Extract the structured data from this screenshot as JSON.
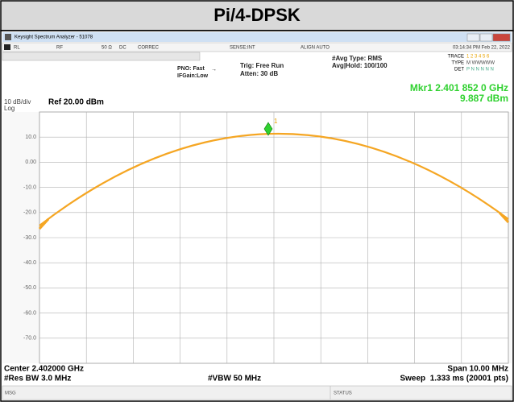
{
  "header": {
    "title": "Pi/4-DPSK"
  },
  "window": {
    "title": "Keysight Spectrum Analyzer - 51078"
  },
  "toolbar": {
    "items": [
      "RL",
      "RF",
      "50 Ω",
      "DC",
      "CORREC",
      "SENSE:INT",
      "ALIGN AUTO",
      "03:14:34 PM Feb 22, 2022"
    ]
  },
  "settings": {
    "pno": "PNO: Fast",
    "ifgain": "IFGain:Low",
    "trig": "Trig: Free Run",
    "atten": "Atten: 30 dB",
    "avg_type": "#Avg Type: RMS",
    "avg_hold": "Avg|Hold: 100/100"
  },
  "trace_info": {
    "trace": "TRACE",
    "trace_nums": "1 2 3 4 5 6",
    "type": "TYPE",
    "type_val": "M WWWWW",
    "det": "DET",
    "det_val": "P N N N N N"
  },
  "marker": {
    "freq": "Mkr1 2.401 852 0 GHz",
    "level": "9.887 dBm",
    "label": "1"
  },
  "scale": {
    "per_div": "10 dB/div",
    "log": "Log",
    "ref": "Ref 20.00 dBm"
  },
  "y_labels": [
    "10.0",
    "0.00",
    "-10.0",
    "-20.0",
    "-30.0",
    "-40.0",
    "-50.0",
    "-60.0",
    "-70.0"
  ],
  "footer": {
    "center": "Center 2.402000 GHz",
    "span": "Span 10.00 MHz",
    "rbw": "#Res BW 3.0 MHz",
    "vbw": "#VBW 50 MHz",
    "sweep": "Sweep  1.333 ms (20001 pts)"
  },
  "status": {
    "msg": "MSG",
    "status": "STATUS"
  }
}
